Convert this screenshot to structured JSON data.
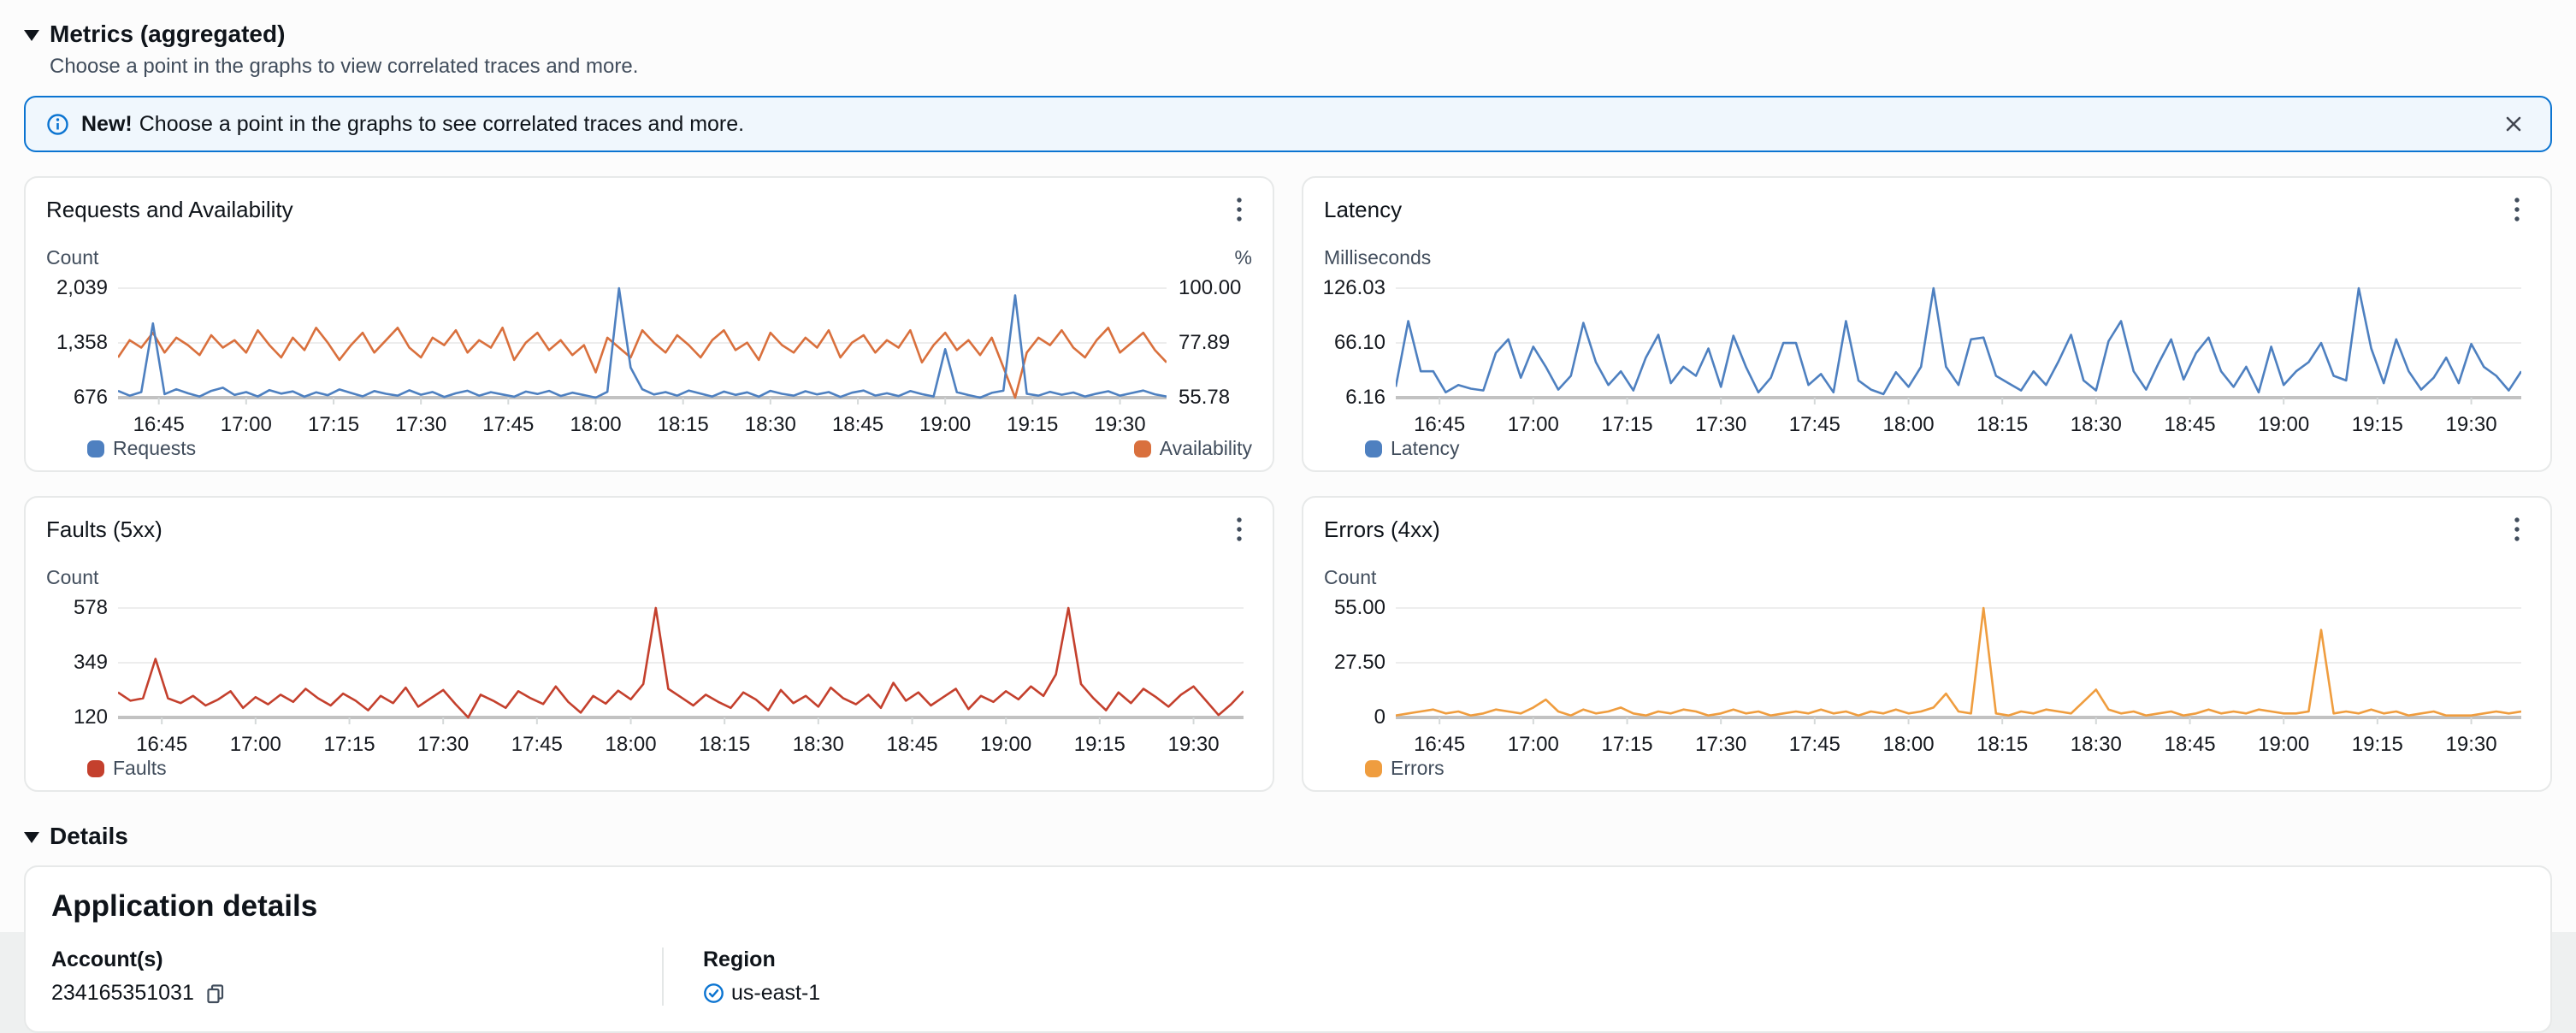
{
  "metrics_section": {
    "title": "Metrics (aggregated)",
    "subtitle": "Choose a point in the graphs to view correlated traces and more."
  },
  "banner": {
    "bold": "New!",
    "text": "Choose a point in the graphs to see correlated traces and more."
  },
  "details_section": {
    "title": "Details",
    "card_title": "Application details",
    "account_label": "Account(s)",
    "account_value": "234165351031",
    "region_label": "Region",
    "region_value": "us-east-1"
  },
  "icons": {
    "section_collapse": "triangle-down",
    "banner_info": "info-circle",
    "banner_close": "x-close",
    "chart_menu": "vertical-ellipsis",
    "account_copy": "copy",
    "region_status": "check-circle"
  },
  "colors": {
    "accent_blue": "#0b74d1",
    "banner_bg": "#f0f7fd",
    "requests_blue": "#4e80c0",
    "availability_orange": "#d9703d",
    "latency_blue": "#4e80c0",
    "faults_red": "#c4402d",
    "errors_orange": "#ef9d3f",
    "grid_light": "#ededed",
    "baseline_gray": "#c2c2c2"
  },
  "x_axis_layout": {
    "tick_positions": [
      0.0389,
      0.1222,
      0.2056,
      0.2889,
      0.3722,
      0.4556,
      0.5389,
      0.6222,
      0.7056,
      0.7889,
      0.8722,
      0.9556
    ]
  },
  "chart_data": [
    {
      "type": "line",
      "title": "Requests and Availability",
      "x_ticks": [
        "16:45",
        "17:00",
        "17:15",
        "17:30",
        "17:45",
        "18:00",
        "18:15",
        "18:30",
        "18:45",
        "19:00",
        "19:15",
        "19:30"
      ],
      "y_left": {
        "label": "Count",
        "ticks": [
          "2,039",
          "1,358",
          "676"
        ],
        "range": [
          676,
          2039
        ]
      },
      "y_right": {
        "label": "%",
        "ticks": [
          "100.00",
          "77.89",
          "55.78"
        ],
        "range": [
          55.78,
          100
        ]
      },
      "series": [
        {
          "name": "Requests",
          "axis": "left",
          "color": "#4e80c0",
          "values": [
            760,
            700,
            745,
            1600,
            720,
            780,
            730,
            690,
            760,
            800,
            710,
            745,
            690,
            770,
            726,
            754,
            688,
            742,
            706,
            778,
            735,
            692,
            758,
            724,
            700,
            768,
            712,
            746,
            684,
            730,
            762,
            700,
            744,
            715,
            688,
            752,
            722,
            760,
            696,
            738,
            708,
            676,
            748,
            2039,
            1050,
            780,
            715,
            745,
            700,
            764,
            726,
            690,
            752,
            710,
            742,
            688,
            760,
            724,
            700,
            756,
            716,
            745,
            685,
            738,
            764,
            702,
            730,
            695,
            758,
            720,
            690,
            1280,
            744,
            708,
            676,
            736,
            762,
            1950,
            724,
            700,
            748,
            712,
            740,
            690,
            726,
            756,
            700,
            734,
            764,
            718,
            690
          ]
        },
        {
          "name": "Availability",
          "axis": "right",
          "color": "#d9703d",
          "values": [
            72,
            79,
            76,
            82,
            74,
            80,
            77,
            73,
            81,
            76,
            79,
            74,
            83,
            77,
            72,
            80,
            75,
            84,
            78,
            71,
            77,
            82,
            74,
            79,
            84,
            76,
            72,
            80,
            77,
            83,
            74,
            79,
            76,
            84,
            71,
            78,
            82,
            75,
            79,
            73,
            77,
            66,
            80,
            76,
            72,
            83,
            78,
            74,
            81,
            77,
            72,
            79,
            83,
            75,
            78,
            71,
            82,
            77,
            74,
            80,
            76,
            83,
            72,
            78,
            81,
            74,
            79,
            76,
            83,
            70,
            77,
            82,
            75,
            79,
            73,
            80,
            68,
            55.78,
            74,
            80,
            77,
            83,
            76,
            72,
            79,
            84,
            74,
            78,
            82,
            75,
            70
          ]
        }
      ]
    },
    {
      "type": "line",
      "title": "Latency",
      "x_ticks": [
        "16:45",
        "17:00",
        "17:15",
        "17:30",
        "17:45",
        "18:00",
        "18:15",
        "18:30",
        "18:45",
        "19:00",
        "19:15",
        "19:30"
      ],
      "y_left": {
        "label": "Milliseconds",
        "ticks": [
          "126.03",
          "66.10",
          "6.16"
        ],
        "range": [
          6.16,
          126.03
        ]
      },
      "series": [
        {
          "name": "Latency",
          "axis": "left",
          "color": "#4e80c0",
          "values": [
            18,
            90,
            35,
            35,
            12,
            20,
            16,
            14,
            55,
            70,
            28,
            62,
            40,
            15,
            30,
            88,
            45,
            20,
            35,
            14,
            50,
            75,
            22,
            40,
            30,
            60,
            18,
            74,
            40,
            12,
            28,
            66,
            66,
            20,
            32,
            12,
            90,
            25,
            15,
            10,
            34,
            18,
            40,
            126,
            40,
            20,
            70,
            72,
            30,
            22,
            14,
            35,
            20,
            46,
            75,
            25,
            14,
            68,
            90,
            35,
            15,
            44,
            70,
            26,
            55,
            72,
            35,
            18,
            40,
            12,
            62,
            20,
            35,
            45,
            66,
            30,
            25,
            126,
            60,
            22,
            70,
            35,
            15,
            28,
            50,
            22,
            65,
            40,
            30,
            14,
            35
          ]
        }
      ]
    },
    {
      "type": "line",
      "title": "Faults (5xx)",
      "x_ticks": [
        "16:45",
        "17:00",
        "17:15",
        "17:30",
        "17:45",
        "18:00",
        "18:15",
        "18:30",
        "18:45",
        "19:00",
        "19:15",
        "19:30"
      ],
      "y_left": {
        "label": "Count",
        "ticks": [
          "578",
          "349",
          "120"
        ],
        "range": [
          120,
          578
        ]
      },
      "series": [
        {
          "name": "Faults",
          "axis": "left",
          "color": "#c4402d",
          "values": [
            225,
            190,
            200,
            365,
            200,
            180,
            210,
            170,
            195,
            230,
            160,
            205,
            175,
            215,
            185,
            240,
            200,
            170,
            220,
            190,
            150,
            210,
            180,
            245,
            165,
            200,
            235,
            175,
            120,
            215,
            190,
            160,
            230,
            200,
            176,
            250,
            185,
            140,
            210,
            178,
            232,
            196,
            260,
            578,
            240,
            205,
            170,
            215,
            185,
            160,
            225,
            195,
            150,
            235,
            180,
            210,
            165,
            245,
            200,
            175,
            215,
            160,
            265,
            190,
            225,
            170,
            205,
            240,
            155,
            210,
            185,
            230,
            196,
            250,
            210,
            300,
            578,
            260,
            200,
            150,
            225,
            180,
            240,
            205,
            165,
            215,
            250,
            190,
            130,
            175,
            230
          ]
        }
      ]
    },
    {
      "type": "line",
      "title": "Errors (4xx)",
      "x_ticks": [
        "16:45",
        "17:00",
        "17:15",
        "17:30",
        "17:45",
        "18:00",
        "18:15",
        "18:30",
        "18:45",
        "19:00",
        "19:15",
        "19:30"
      ],
      "y_left": {
        "label": "Count",
        "ticks": [
          "55.00",
          "27.50",
          "0"
        ],
        "range": [
          0,
          55
        ]
      },
      "series": [
        {
          "name": "Errors",
          "axis": "left",
          "color": "#ef9d3f",
          "values": [
            1,
            2,
            3,
            4,
            2,
            3,
            1,
            2,
            4,
            3,
            2,
            5,
            9,
            3,
            1,
            4,
            2,
            3,
            5,
            2,
            1,
            3,
            2,
            4,
            3,
            1,
            2,
            4,
            2,
            3,
            1,
            2,
            3,
            2,
            4,
            2,
            3,
            1,
            3,
            2,
            4,
            2,
            3,
            5,
            12,
            3,
            2,
            55,
            2,
            1,
            3,
            2,
            4,
            3,
            2,
            8,
            14,
            4,
            2,
            3,
            1,
            2,
            3,
            1,
            2,
            4,
            2,
            3,
            2,
            4,
            3,
            2,
            2,
            3,
            44,
            2,
            3,
            2,
            4,
            2,
            3,
            1,
            2,
            3,
            1,
            1,
            1,
            2,
            3,
            2,
            3
          ]
        }
      ]
    }
  ]
}
